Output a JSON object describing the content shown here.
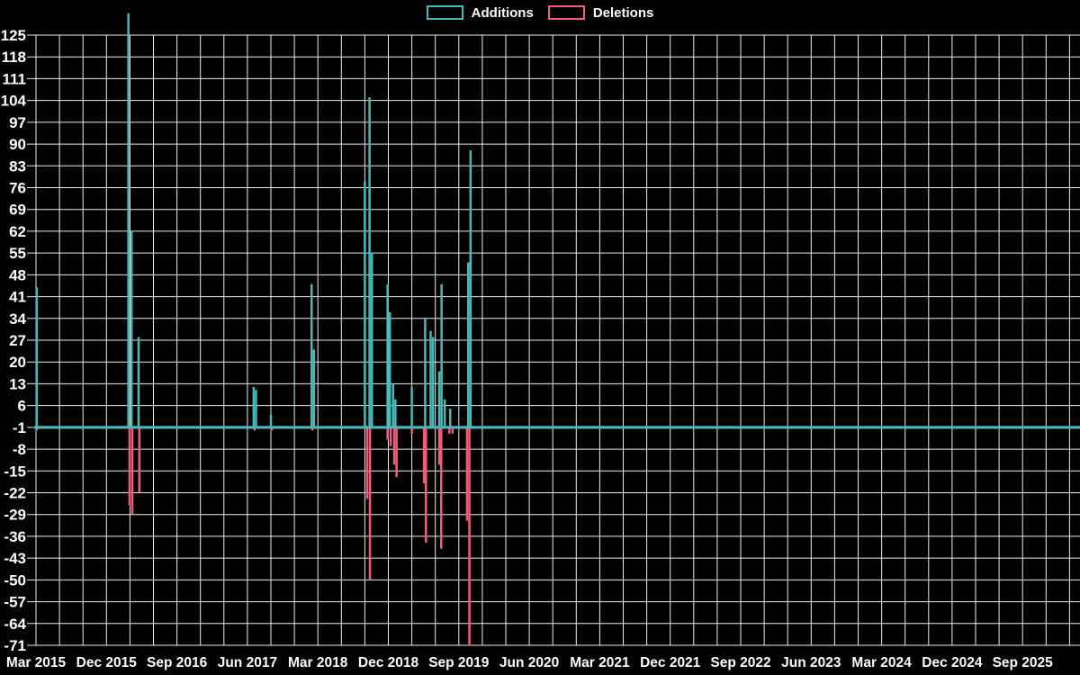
{
  "legend": {
    "additions_label": "Additions",
    "deletions_label": "Deletions"
  },
  "chart_data": {
    "type": "line",
    "title": "",
    "legend_position": "top-center",
    "background_color": "#000000",
    "grid": {
      "color": "#ffffff",
      "horizontal_step_units": 7,
      "vertical_step_months": 3,
      "total_months_span": 132
    },
    "y_axis": {
      "min": -71,
      "max": 125,
      "ticks": [
        125,
        118,
        111,
        104,
        97,
        90,
        83,
        76,
        69,
        62,
        55,
        48,
        41,
        34,
        27,
        20,
        13,
        6,
        -1,
        -8,
        -15,
        -22,
        -29,
        -36,
        -43,
        -50,
        -57,
        -64,
        -71
      ]
    },
    "x_axis": {
      "tick_interval_months": 9,
      "tick_labels": [
        "Mar 2015",
        "Dec 2015",
        "Sep 2016",
        "Jun 2017",
        "Mar 2018",
        "Dec 2018",
        "Sep 2019",
        "Jun 2020",
        "Mar 2021",
        "Dec 2021",
        "Sep 2022",
        "Jun 2023",
        "Mar 2024",
        "Dec 2024",
        "Sep 2025"
      ]
    },
    "series": [
      {
        "name": "Additions",
        "color": "#46b9b9",
        "baseline": 0,
        "spikes": [
          {
            "m": 0.1,
            "v": 44
          },
          {
            "m": 11.8,
            "v": 132
          },
          {
            "m": 12.2,
            "v": 62
          },
          {
            "m": 13.1,
            "v": 28
          },
          {
            "m": 27.8,
            "v": 12
          },
          {
            "m": 28.1,
            "v": 11
          },
          {
            "m": 30.0,
            "v": 3
          },
          {
            "m": 35.2,
            "v": 45
          },
          {
            "m": 35.5,
            "v": 24
          },
          {
            "m": 42.0,
            "v": 78
          },
          {
            "m": 42.6,
            "v": 105
          },
          {
            "m": 42.9,
            "v": 55
          },
          {
            "m": 44.9,
            "v": 45
          },
          {
            "m": 45.2,
            "v": 36
          },
          {
            "m": 45.6,
            "v": 13
          },
          {
            "m": 45.9,
            "v": 8
          },
          {
            "m": 48.0,
            "v": 12
          },
          {
            "m": 49.7,
            "v": 34
          },
          {
            "m": 50.4,
            "v": 30
          },
          {
            "m": 50.7,
            "v": 28
          },
          {
            "m": 51.5,
            "v": 17
          },
          {
            "m": 51.8,
            "v": 45
          },
          {
            "m": 52.2,
            "v": 8
          },
          {
            "m": 52.9,
            "v": 5
          },
          {
            "m": 55.2,
            "v": 52
          },
          {
            "m": 55.5,
            "v": 88
          }
        ]
      },
      {
        "name": "Deletions",
        "color": "#f25c7a",
        "baseline": 0,
        "spikes": [
          {
            "m": 0.1,
            "v": -2
          },
          {
            "m": 11.95,
            "v": -26
          },
          {
            "m": 12.3,
            "v": -29
          },
          {
            "m": 13.2,
            "v": -22
          },
          {
            "m": 27.9,
            "v": -2
          },
          {
            "m": 30.1,
            "v": -2
          },
          {
            "m": 35.3,
            "v": -2
          },
          {
            "m": 42.3,
            "v": -24
          },
          {
            "m": 42.65,
            "v": -50
          },
          {
            "m": 44.9,
            "v": -5
          },
          {
            "m": 45.3,
            "v": -7
          },
          {
            "m": 45.75,
            "v": -13
          },
          {
            "m": 46.05,
            "v": -17
          },
          {
            "m": 48.0,
            "v": -3
          },
          {
            "m": 49.55,
            "v": -19
          },
          {
            "m": 49.8,
            "v": -38
          },
          {
            "m": 51.5,
            "v": -13
          },
          {
            "m": 51.75,
            "v": -40
          },
          {
            "m": 52.8,
            "v": -3
          },
          {
            "m": 53.2,
            "v": -3
          },
          {
            "m": 55.05,
            "v": -31
          },
          {
            "m": 55.35,
            "v": -71
          }
        ]
      }
    ]
  }
}
